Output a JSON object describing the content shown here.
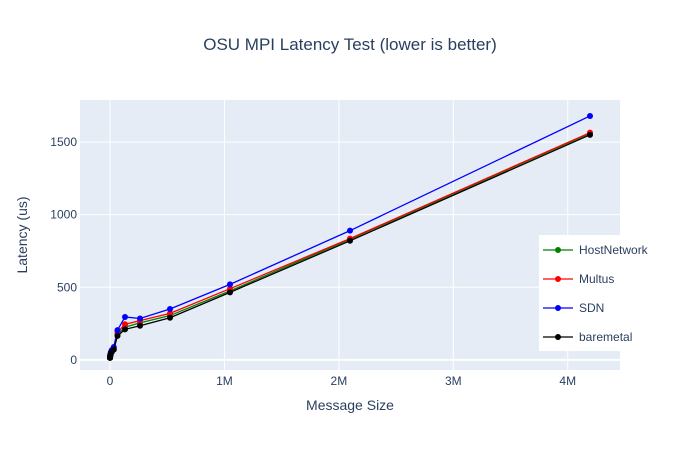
{
  "chart_data": {
    "type": "line",
    "title": "OSU MPI Latency Test (lower is better)",
    "xlabel": "Message Size",
    "ylabel": "Latency (us)",
    "xlim": [
      -262144,
      4456448
    ],
    "ylim": [
      -70,
      1790
    ],
    "x_ticks": [
      0,
      1000000,
      2000000,
      3000000,
      4000000
    ],
    "x_tick_labels": [
      "0",
      "1M",
      "2M",
      "3M",
      "4M"
    ],
    "y_ticks": [
      0,
      500,
      1000,
      1500
    ],
    "y_tick_labels": [
      "0",
      "500",
      "1000",
      "1500"
    ],
    "grid": true,
    "legend_position": "right",
    "x": [
      0,
      1,
      2,
      4,
      8,
      16,
      32,
      64,
      128,
      256,
      512,
      1024,
      2048,
      4096,
      8192,
      16384,
      32768,
      65536,
      131072,
      262144,
      524288,
      1048576,
      2097152,
      4194304
    ],
    "series": [
      {
        "name": "HostNetwork",
        "color": "#008000",
        "values": [
          15,
          15,
          15,
          15,
          15,
          15,
          16,
          16,
          17,
          18,
          20,
          23,
          28,
          36,
          46,
          58,
          75,
          175,
          225,
          255,
          305,
          475,
          830,
          1560
        ]
      },
      {
        "name": "Multus",
        "color": "#ff0000",
        "values": [
          16,
          16,
          16,
          16,
          16,
          16,
          17,
          17,
          18,
          19,
          21,
          24,
          29,
          38,
          48,
          62,
          80,
          190,
          245,
          270,
          320,
          490,
          835,
          1565
        ]
      },
      {
        "name": "SDN",
        "color": "#0000ff",
        "values": [
          18,
          18,
          18,
          18,
          18,
          18,
          19,
          19,
          20,
          21,
          23,
          26,
          32,
          42,
          55,
          68,
          88,
          205,
          295,
          285,
          350,
          520,
          890,
          1680
        ]
      },
      {
        "name": "baremetal",
        "color": "#000000",
        "values": [
          14,
          14,
          14,
          14,
          14,
          14,
          15,
          15,
          16,
          17,
          19,
          22,
          27,
          34,
          44,
          55,
          70,
          165,
          210,
          235,
          290,
          465,
          820,
          1550
        ]
      }
    ]
  }
}
